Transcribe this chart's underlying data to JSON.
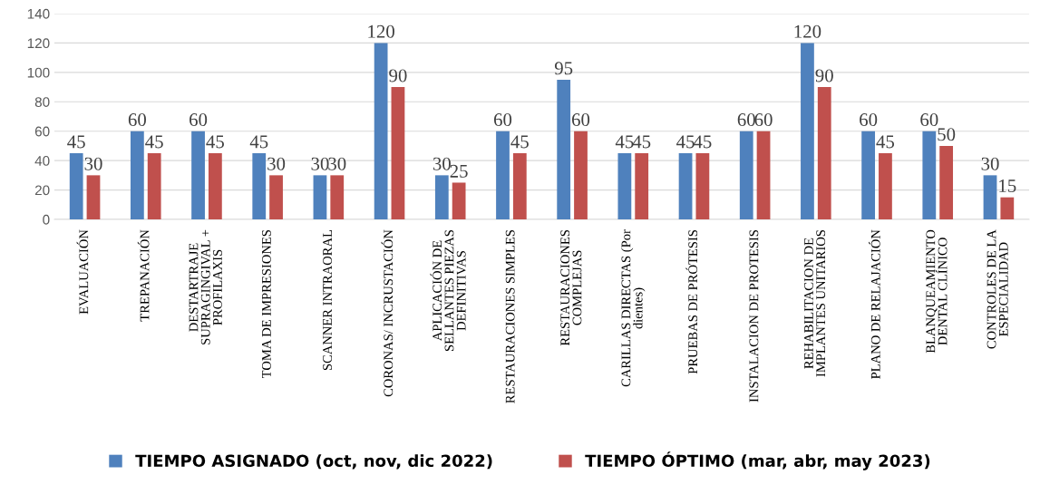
{
  "chart_data": {
    "type": "bar",
    "categories": [
      "EVALUACIÓN",
      "TREPANACIÓN",
      "DESTARTRAJE\nSUPRAGINGIVAL +\nPROFILAXIS",
      "TOMA DE IMPRESIONES",
      "SCANNER INTRAORAL",
      "CORONAS/ INCRUSTACIÓN",
      "APLICACIÓN DE\nSELLANTES PIEZAS\nDEFINITIVAS",
      "RESTAURACIONES SIMPLES",
      "RESTAURACIONES\nCOMPLEJAS",
      "CARILLAS DIRECTAS (Por\ndientes)",
      "PRUEBAS DE PRÓTESIS",
      "INSTALACION DE PROTESIS",
      "REHABILITACION DE\nIMPLANTES UNITARIOS",
      "PLANO DE RELAJACIÓN",
      "BLANQUEAMIENTO\nDENTAL CLÍNICO",
      "CONTROLES DE LA\nESPECIALIDAD"
    ],
    "series": [
      {
        "name": "TIEMPO ASIGNADO (oct, nov, dic 2022)",
        "color": "#4f81bd",
        "values": [
          45,
          60,
          60,
          45,
          30,
          120,
          30,
          60,
          95,
          45,
          45,
          60,
          120,
          60,
          60,
          30
        ]
      },
      {
        "name": "TIEMPO ÓPTIMO (mar, abr, may 2023)",
        "color": "#c0504d",
        "values": [
          30,
          45,
          45,
          30,
          30,
          90,
          25,
          45,
          60,
          45,
          45,
          60,
          90,
          45,
          50,
          15
        ]
      }
    ],
    "ylim": [
      0,
      140
    ],
    "yticks": [
      0,
      20,
      40,
      60,
      80,
      100,
      120,
      140
    ],
    "grid": "y",
    "legend": "bottom",
    "data_labels": true
  }
}
